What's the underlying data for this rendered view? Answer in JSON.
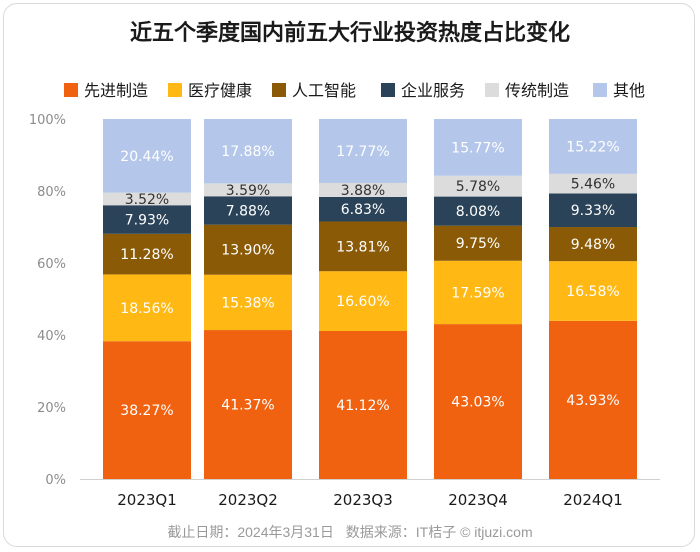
{
  "chart_data": {
    "type": "bar",
    "stacked": true,
    "title": "近五个季度国内前五大行业投资热度占比变化",
    "categories": [
      "2023Q1",
      "2023Q2",
      "2023Q3",
      "2023Q4",
      "2024Q1"
    ],
    "y_ticks": [
      "0%",
      "20%",
      "40%",
      "60%",
      "80%",
      "100%"
    ],
    "ylim": [
      0,
      100
    ],
    "series": [
      {
        "name": "先进制造",
        "color": "#f0620f",
        "label_color": "#ffffff",
        "values": [
          38.27,
          41.37,
          41.12,
          43.03,
          43.93
        ],
        "labels": [
          "38.27%",
          "41.37%",
          "41.12%",
          "43.03%",
          "43.93%"
        ]
      },
      {
        "name": "医疗健康",
        "color": "#ffb814",
        "label_color": "#ffffff",
        "values": [
          18.56,
          15.38,
          16.6,
          17.59,
          16.58
        ],
        "labels": [
          "18.56%",
          "15.38%",
          "16.60%",
          "17.59%",
          "16.58%"
        ]
      },
      {
        "name": "人工智能",
        "color": "#8a5a06",
        "label_color": "#ffffff",
        "values": [
          11.28,
          13.9,
          13.81,
          9.75,
          9.48
        ],
        "labels": [
          "11.28%",
          "13.90%",
          "13.81%",
          "9.75%",
          "9.48%"
        ]
      },
      {
        "name": "企业服务",
        "color": "#2a4358",
        "label_color": "#ffffff",
        "values": [
          7.93,
          7.88,
          6.83,
          8.08,
          9.33
        ],
        "labels": [
          "7.93%",
          "7.88%",
          "6.83%",
          "8.08%",
          "9.33%"
        ]
      },
      {
        "name": "传统制造",
        "color": "#dcdcdc",
        "label_color": "#333333",
        "values": [
          3.52,
          3.59,
          3.88,
          5.78,
          5.46
        ],
        "labels": [
          "3.52%",
          "3.59%",
          "3.88%",
          "5.78%",
          "5.46%"
        ]
      },
      {
        "name": "其他",
        "color": "#b4c6e9",
        "label_color": "#ffffff",
        "values": [
          20.44,
          17.88,
          17.77,
          15.77,
          15.22
        ],
        "labels": [
          "20.44%",
          "17.88%",
          "17.77%",
          "15.77%",
          "15.22%"
        ]
      }
    ],
    "legend_position": "top"
  },
  "footer": {
    "date_text": "截止日期：2024年3月31日",
    "source_text": "数据来源：IT桔子 © itjuzi.com"
  }
}
